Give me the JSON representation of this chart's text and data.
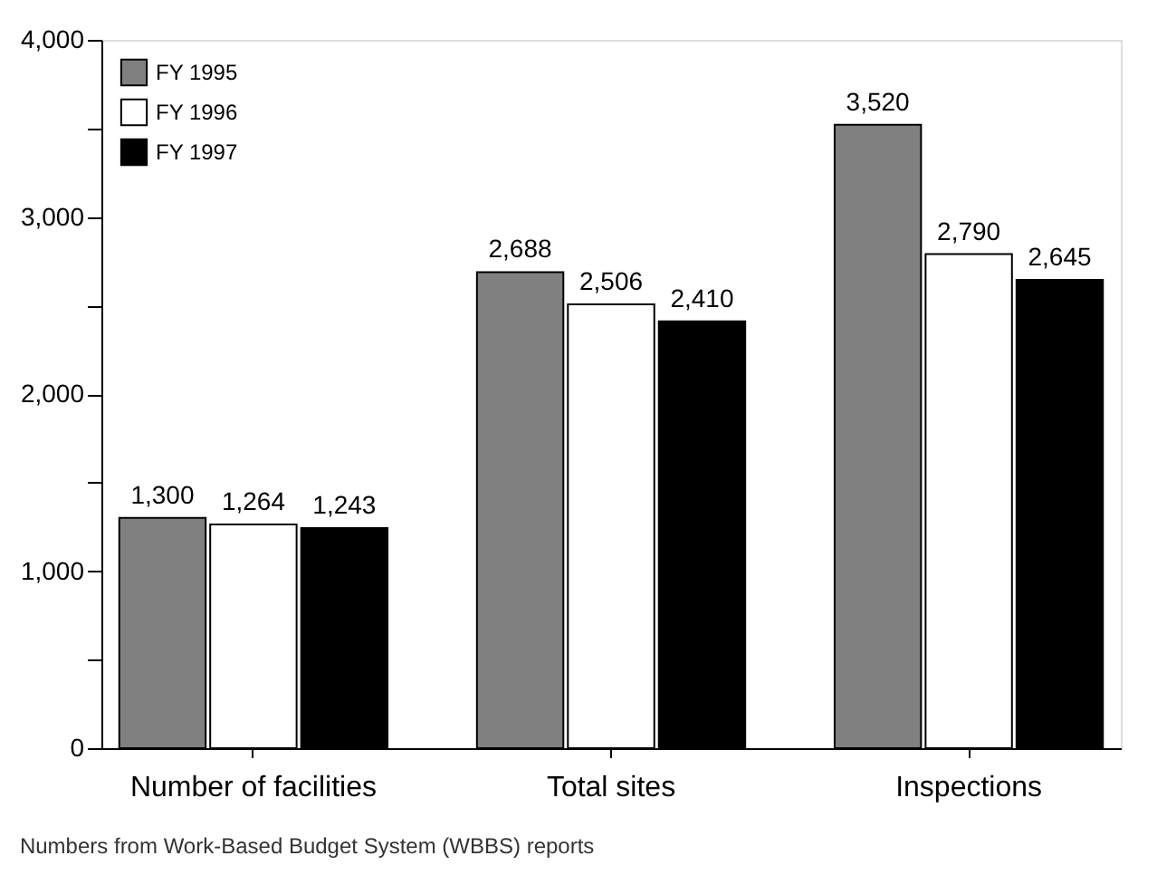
{
  "chart_data": {
    "type": "bar",
    "categories": [
      "Number of facilities",
      "Total sites",
      "Inspections"
    ],
    "series": [
      {
        "name": "FY 1995",
        "color": "#808080",
        "values": [
          1300,
          2688,
          3520
        ],
        "value_labels": [
          "1,300",
          "2,688",
          "3,520"
        ]
      },
      {
        "name": "FY 1996",
        "color": "#ffffff",
        "values": [
          1264,
          2506,
          2790
        ],
        "value_labels": [
          "1,264",
          "2,506",
          "2,790"
        ]
      },
      {
        "name": "FY 1997",
        "color": "#000000",
        "values": [
          1243,
          2410,
          2645
        ],
        "value_labels": [
          "1,243",
          "2,410",
          "2,645"
        ]
      }
    ],
    "ylim": [
      0,
      4000
    ],
    "yticks": [
      {
        "value": 0,
        "label": "0"
      },
      {
        "value": 500,
        "label": null
      },
      {
        "value": 1000,
        "label": "1,000"
      },
      {
        "value": 1500,
        "label": null
      },
      {
        "value": 2000,
        "label": "2,000"
      },
      {
        "value": 2500,
        "label": null
      },
      {
        "value": 3000,
        "label": "3,000"
      },
      {
        "value": 3500,
        "label": null
      },
      {
        "value": 4000,
        "label": "4,000"
      }
    ],
    "grid": false,
    "legend": "top left",
    "annotations": [
      "Numbers from Work-Based Budget System (WBBS) reports"
    ]
  }
}
